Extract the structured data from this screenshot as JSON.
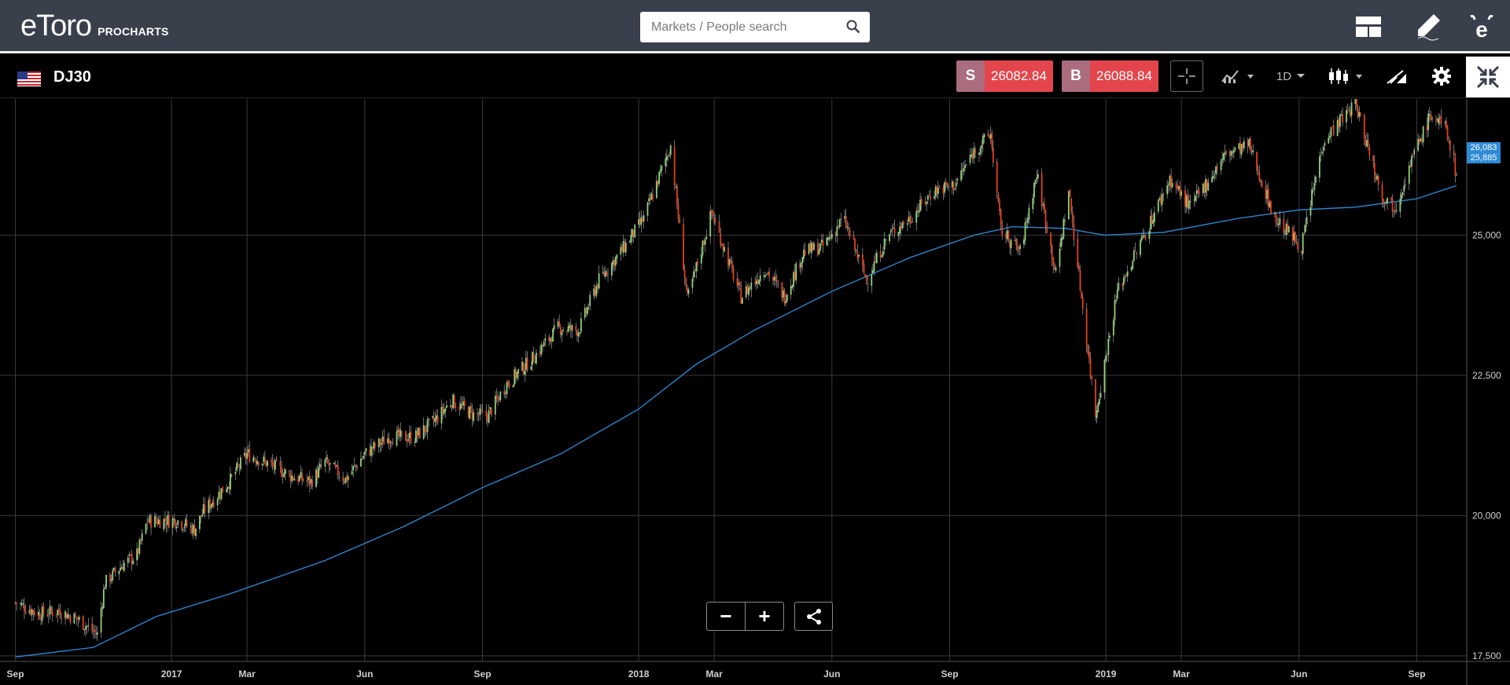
{
  "header": {
    "brand": "eToro",
    "product": "PROCHARTS",
    "search_placeholder": "Markets / People search"
  },
  "toolbar": {
    "symbol": "DJ30",
    "sell_label": "S",
    "sell_price": "26082.84",
    "buy_label": "B",
    "buy_price": "26088.84",
    "timeframe": "1D"
  },
  "colors": {
    "background": "#000000",
    "topbar": "#3a3f4c",
    "sell_buy_price": "#e4454c",
    "candle_up": "#8fd17b",
    "candle_down": "#e0401f",
    "moving_average": "#2e8bd8",
    "grid": "#3a3a3a"
  },
  "icons": {
    "search": "search-icon",
    "layout": "layout-icon",
    "edit": "pencil-icon",
    "profile": "etoro-e-icon",
    "crosshair": "crosshair-icon",
    "indicators": "indicators-icon",
    "chart_type": "candlestick-icon",
    "drawing": "drawing-tools-icon",
    "settings": "gear-icon",
    "collapse": "collapse-icon",
    "share": "share-icon"
  },
  "zoom": {
    "minus": "−",
    "plus": "+"
  },
  "chart_data": {
    "type": "candlestick",
    "instrument": "DJ30",
    "timeframe": "1D",
    "x_ticks": [
      "Sep",
      "2017",
      "Mar",
      "Jun",
      "Sep",
      "2018",
      "Mar",
      "Jun",
      "Sep",
      "2019",
      "Mar",
      "Jun",
      "Sep"
    ],
    "y_ticks": [
      "25,000",
      "22,500",
      "20,000",
      "17,500"
    ],
    "ylim": [
      17400,
      27400
    ],
    "grid": true,
    "last_price_label": "26,083",
    "ma_price_label": "25,885",
    "price_series": [
      [
        "2016-09-01",
        18450
      ],
      [
        "2016-09-20",
        18250
      ],
      [
        "2016-10-05",
        18300
      ],
      [
        "2016-10-20",
        18150
      ],
      [
        "2016-11-04",
        17880
      ],
      [
        "2016-11-10",
        18800
      ],
      [
        "2016-11-25",
        19150
      ],
      [
        "2016-12-05",
        19300
      ],
      [
        "2016-12-13",
        19900
      ],
      [
        "2017-01-05",
        19920
      ],
      [
        "2017-01-19",
        19750
      ],
      [
        "2017-01-26",
        20080
      ],
      [
        "2017-02-15",
        20600
      ],
      [
        "2017-03-01",
        21100
      ],
      [
        "2017-03-20",
        20900
      ],
      [
        "2017-04-05",
        20700
      ],
      [
        "2017-04-20",
        20600
      ],
      [
        "2017-05-01",
        20950
      ],
      [
        "2017-05-17",
        20650
      ],
      [
        "2017-06-01",
        21100
      ],
      [
        "2017-06-20",
        21400
      ],
      [
        "2017-07-10",
        21400
      ],
      [
        "2017-07-26",
        21700
      ],
      [
        "2017-08-08",
        22050
      ],
      [
        "2017-08-25",
        21800
      ],
      [
        "2017-09-05",
        21780
      ],
      [
        "2017-09-20",
        22350
      ],
      [
        "2017-10-10",
        22800
      ],
      [
        "2017-10-30",
        23350
      ],
      [
        "2017-11-15",
        23300
      ],
      [
        "2017-12-01",
        24200
      ],
      [
        "2017-12-18",
        24700
      ],
      [
        "2018-01-05",
        25300
      ],
      [
        "2018-01-26",
        26600
      ],
      [
        "2018-02-08",
        23850
      ],
      [
        "2018-02-27",
        25400
      ],
      [
        "2018-03-22",
        23900
      ],
      [
        "2018-04-10",
        24400
      ],
      [
        "2018-04-25",
        23900
      ],
      [
        "2018-05-10",
        24700
      ],
      [
        "2018-05-25",
        24800
      ],
      [
        "2018-06-10",
        25300
      ],
      [
        "2018-06-28",
        24200
      ],
      [
        "2018-07-15",
        25000
      ],
      [
        "2018-08-01",
        25300
      ],
      [
        "2018-08-20",
        25800
      ],
      [
        "2018-09-05",
        25900
      ],
      [
        "2018-09-20",
        26500
      ],
      [
        "2018-10-03",
        26800
      ],
      [
        "2018-10-11",
        25100
      ],
      [
        "2018-10-26",
        24700
      ],
      [
        "2018-11-08",
        26100
      ],
      [
        "2018-11-23",
        24300
      ],
      [
        "2018-12-03",
        25800
      ],
      [
        "2018-12-24",
        21800
      ],
      [
        "2019-01-10",
        24000
      ],
      [
        "2019-01-31",
        25000
      ],
      [
        "2019-02-20",
        26000
      ],
      [
        "2019-03-08",
        25500
      ],
      [
        "2019-04-05",
        26450
      ],
      [
        "2019-04-23",
        26600
      ],
      [
        "2019-05-13",
        25300
      ],
      [
        "2019-06-03",
        24800
      ],
      [
        "2019-06-20",
        26700
      ],
      [
        "2019-07-15",
        27350
      ],
      [
        "2019-08-05",
        25700
      ],
      [
        "2019-08-15",
        25500
      ],
      [
        "2019-08-29",
        26400
      ],
      [
        "2019-09-12",
        27150
      ],
      [
        "2019-09-24",
        26900
      ],
      [
        "2019-10-02",
        26083
      ]
    ],
    "moving_average": [
      [
        "2016-09-01",
        17480
      ],
      [
        "2016-11-01",
        17650
      ],
      [
        "2016-12-20",
        18200
      ],
      [
        "2017-02-15",
        18600
      ],
      [
        "2017-05-01",
        19200
      ],
      [
        "2017-07-01",
        19800
      ],
      [
        "2017-09-01",
        20500
      ],
      [
        "2017-11-01",
        21100
      ],
      [
        "2018-01-01",
        21900
      ],
      [
        "2018-02-15",
        22700
      ],
      [
        "2018-04-01",
        23300
      ],
      [
        "2018-06-01",
        24000
      ],
      [
        "2018-08-01",
        24600
      ],
      [
        "2018-09-20",
        25000
      ],
      [
        "2018-10-20",
        25150
      ],
      [
        "2018-12-01",
        25120
      ],
      [
        "2018-12-31",
        25000
      ],
      [
        "2019-02-15",
        25050
      ],
      [
        "2019-04-15",
        25300
      ],
      [
        "2019-06-01",
        25450
      ],
      [
        "2019-07-15",
        25500
      ],
      [
        "2019-09-01",
        25650
      ],
      [
        "2019-10-02",
        25885
      ]
    ]
  }
}
